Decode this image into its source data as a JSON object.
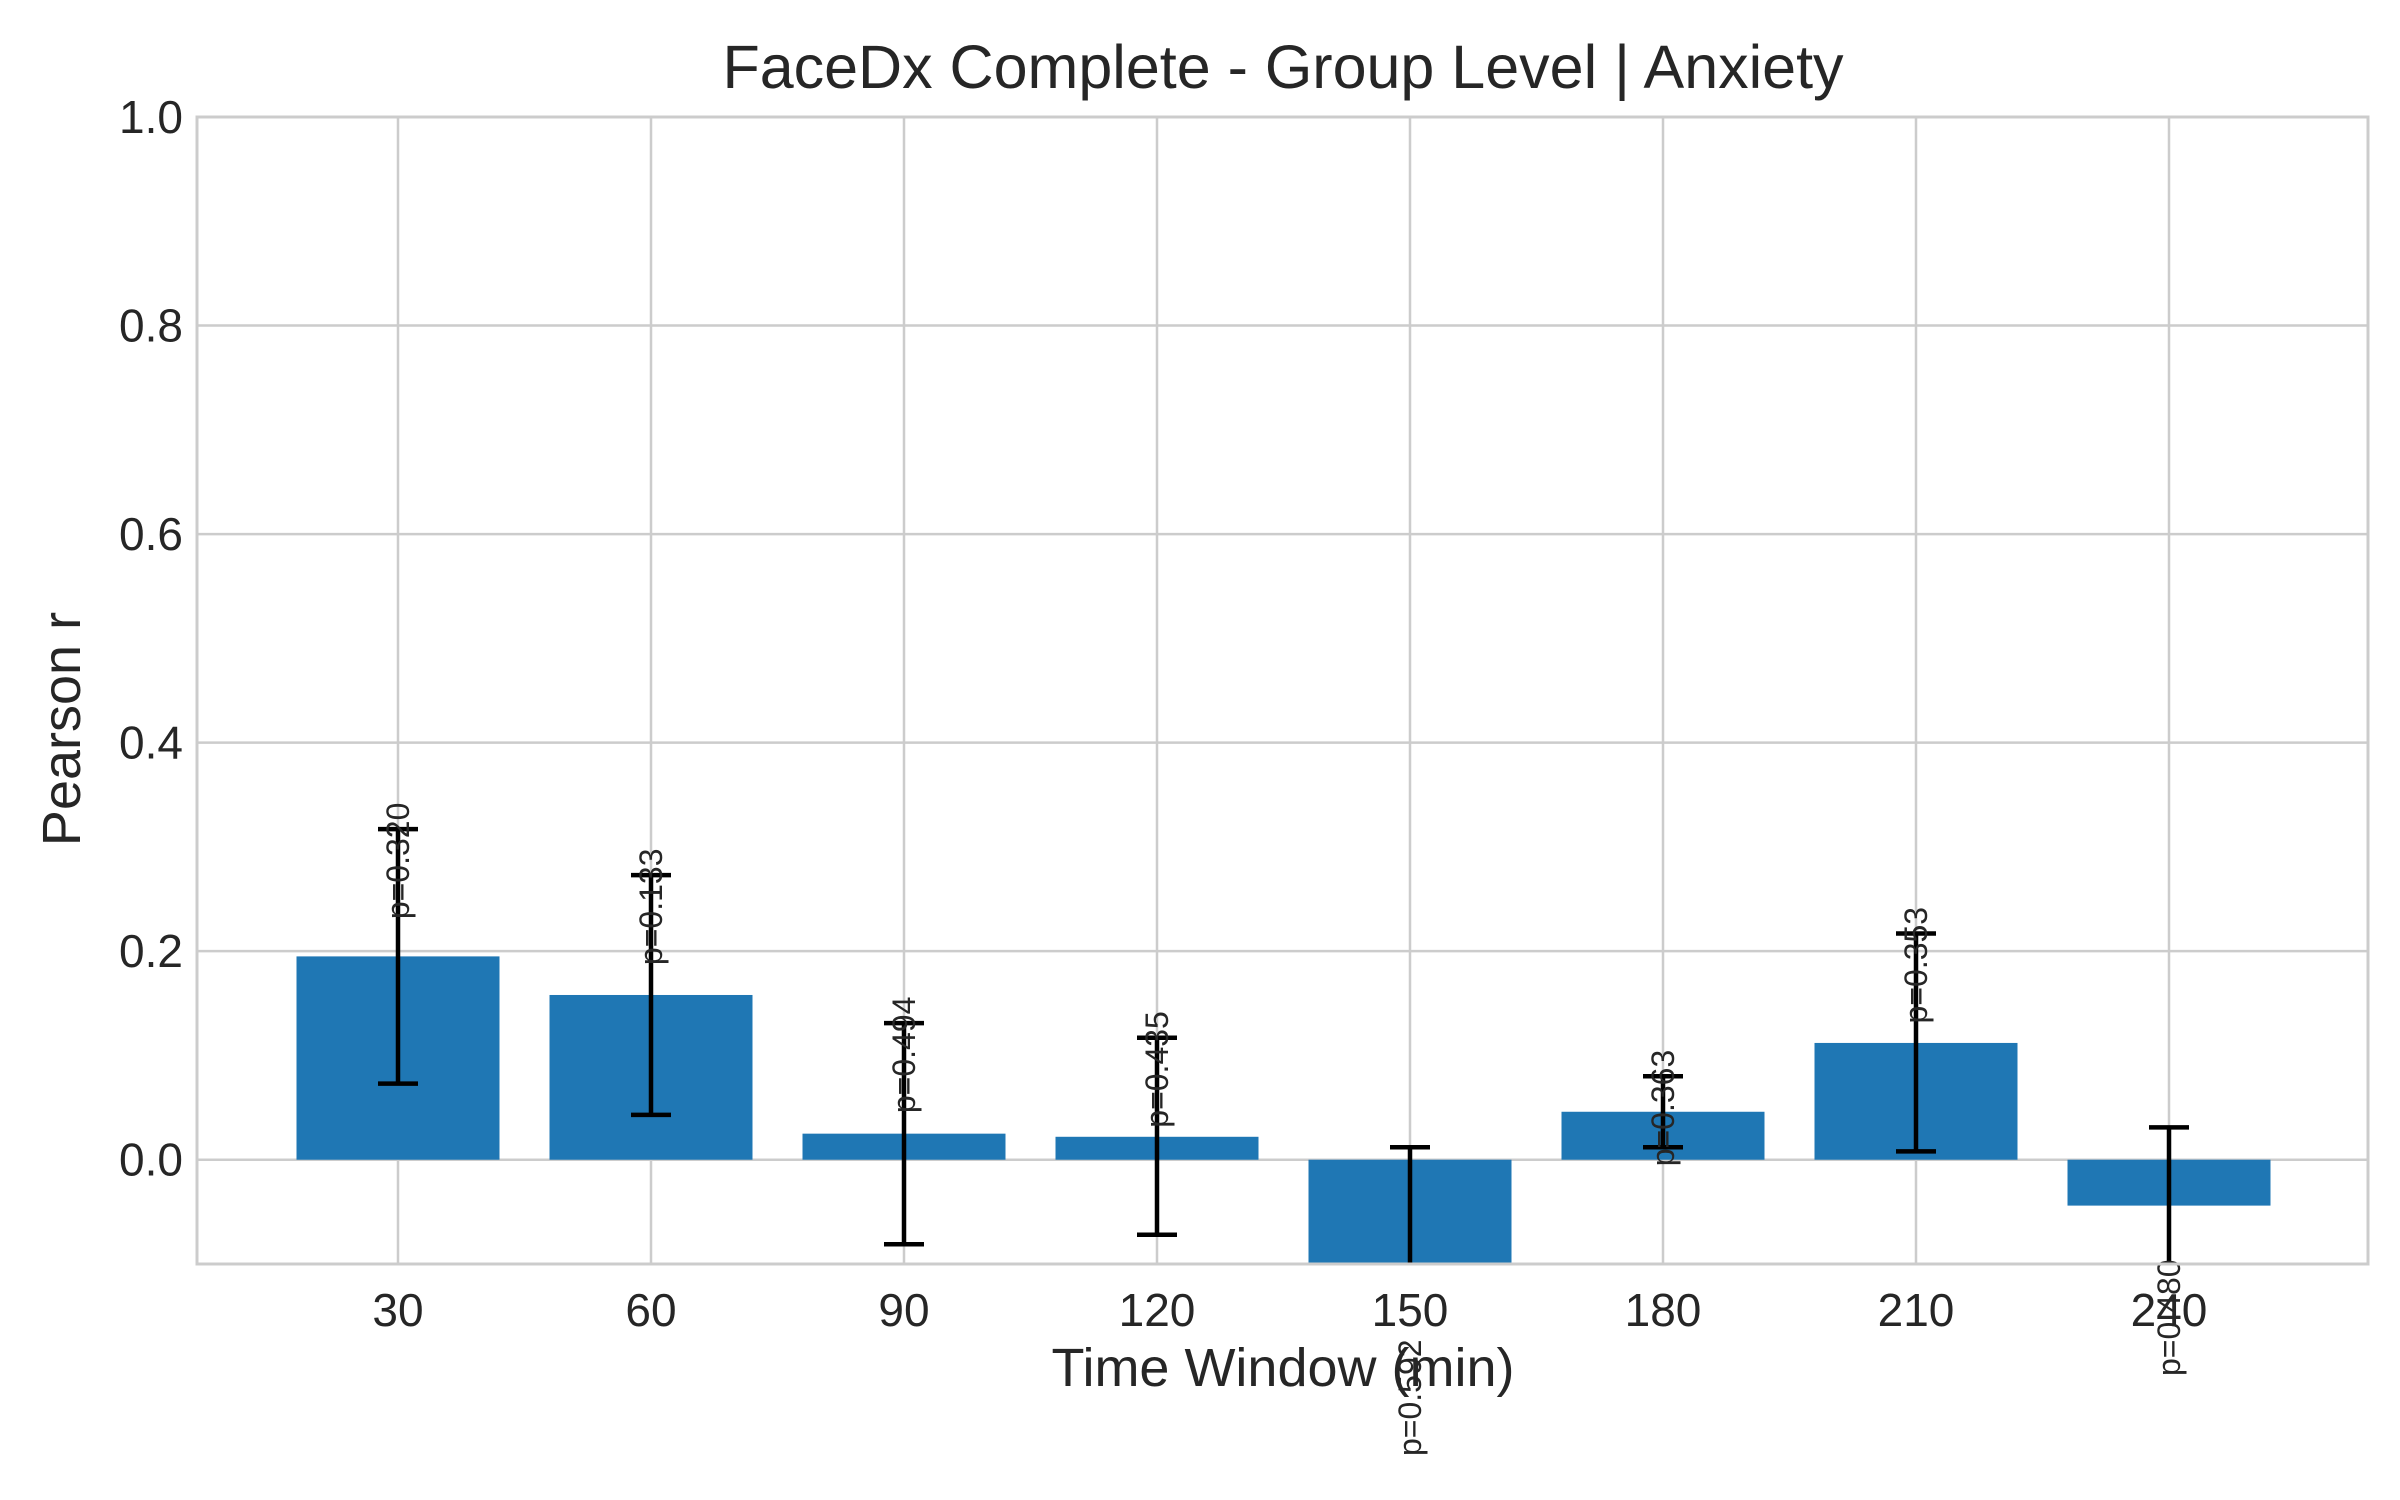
{
  "chart_data": {
    "type": "bar",
    "title": "FaceDx Complete - Group Level | Anxiety",
    "xlabel": "Time Window (min)",
    "ylabel": "Pearson r",
    "categories": [
      "30",
      "60",
      "90",
      "120",
      "150",
      "180",
      "210",
      "240"
    ],
    "values": [
      0.195,
      0.158,
      0.025,
      0.022,
      -0.1,
      0.046,
      0.112,
      -0.044
    ],
    "error_low": [
      0.073,
      0.043,
      -0.081,
      -0.072,
      -0.13,
      0.012,
      0.008,
      -0.12
    ],
    "error_high": [
      0.317,
      0.273,
      0.131,
      0.117,
      0.012,
      0.08,
      0.217,
      0.031
    ],
    "annotations": [
      "p=0.320",
      "p=0.133",
      "p=0.494",
      "p=0.435",
      "p=0.592",
      "p=0.363",
      "p=0.353",
      "p=0.480"
    ],
    "ylim": [
      -0.1,
      1.0
    ],
    "yticks": [
      "0.0",
      "0.2",
      "0.4",
      "0.6",
      "0.8",
      "1.0"
    ],
    "bar_color": "#1f77b4",
    "error_color": "#000000",
    "grid": true,
    "legend": "none"
  }
}
